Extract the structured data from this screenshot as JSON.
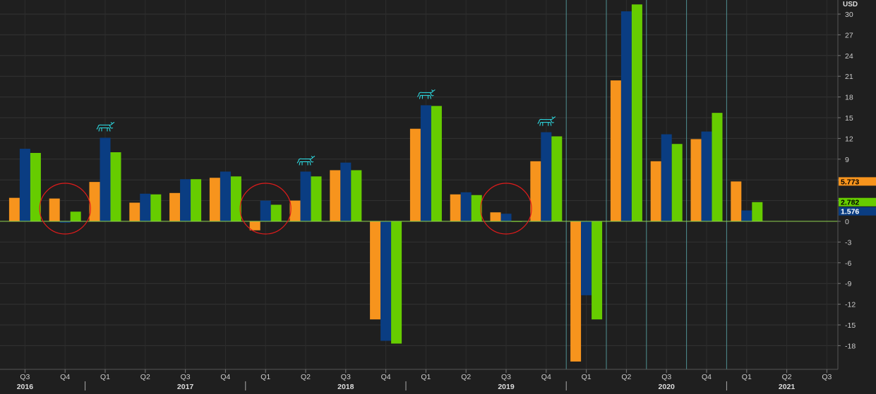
{
  "chart_data": {
    "type": "bar",
    "currency_label": "USD",
    "categories": [
      "Q3 2016",
      "Q4 2016",
      "Q1 2017",
      "Q2 2017",
      "Q3 2017",
      "Q4 2017",
      "Q1 2018",
      "Q2 2018",
      "Q3 2018",
      "Q4 2018",
      "Q1 2019",
      "Q2 2019",
      "Q3 2019",
      "Q4 2019",
      "Q1 2020",
      "Q2 2020",
      "Q3 2020",
      "Q4 2020",
      "Q1 2021",
      "Q2 2021",
      "Q3 2021"
    ],
    "quarter_labels": [
      "Q3",
      "Q4",
      "Q1",
      "Q2",
      "Q3",
      "Q4",
      "Q1",
      "Q2",
      "Q3",
      "Q4",
      "Q1",
      "Q2",
      "Q3",
      "Q4",
      "Q1",
      "Q2",
      "Q3",
      "Q4",
      "Q1",
      "Q2",
      "Q3"
    ],
    "year_labels": [
      {
        "label": "2016",
        "index": 0
      },
      {
        "label": "2017",
        "index": 4
      },
      {
        "label": "2018",
        "index": 8
      },
      {
        "label": "2019",
        "index": 12
      },
      {
        "label": "2020",
        "index": 16
      },
      {
        "label": "2021",
        "index": 19
      }
    ],
    "year_start_indices": [
      2,
      6,
      10,
      14,
      18
    ],
    "series": [
      {
        "color": "#f7941d",
        "values": [
          3.4,
          3.3,
          5.7,
          2.7,
          4.1,
          6.3,
          -1.3,
          3.0,
          7.4,
          -14.2,
          13.4,
          3.9,
          1.3,
          8.7,
          -20.3,
          20.4,
          8.7,
          11.9,
          5.773,
          null,
          null
        ]
      },
      {
        "color": "#0a3d82",
        "values": [
          10.5,
          -0.2,
          12.1,
          4.0,
          6.1,
          7.2,
          3.0,
          7.2,
          8.5,
          -17.3,
          16.8,
          4.2,
          1.1,
          12.9,
          -10.7,
          30.4,
          12.6,
          13.0,
          1.576,
          null,
          null
        ]
      },
      {
        "color": "#66cc00",
        "values": [
          9.9,
          1.4,
          10.0,
          3.9,
          6.1,
          6.5,
          2.4,
          6.5,
          7.4,
          -17.7,
          16.7,
          3.8,
          0.0,
          12.3,
          -14.2,
          31.4,
          11.2,
          15.7,
          2.782,
          null,
          null
        ]
      }
    ],
    "last_value_labels": [
      "5.773",
      "2.782",
      "1.576"
    ],
    "y_ticks": [
      "30",
      "27",
      "24",
      "21",
      "18",
      "15",
      "12",
      "9",
      "6",
      "3",
      "0",
      "-3",
      "-6",
      "-9",
      "-12",
      "-15",
      "-18"
    ],
    "ylim": [
      -21,
      31
    ],
    "grid": true,
    "highlight_vlines_after_index": [
      13,
      14,
      15,
      16,
      17
    ],
    "annotations": {
      "bull_icon_indices": [
        2,
        7,
        10,
        13,
        15
      ],
      "circle_indices": [
        1,
        6,
        12
      ]
    }
  }
}
